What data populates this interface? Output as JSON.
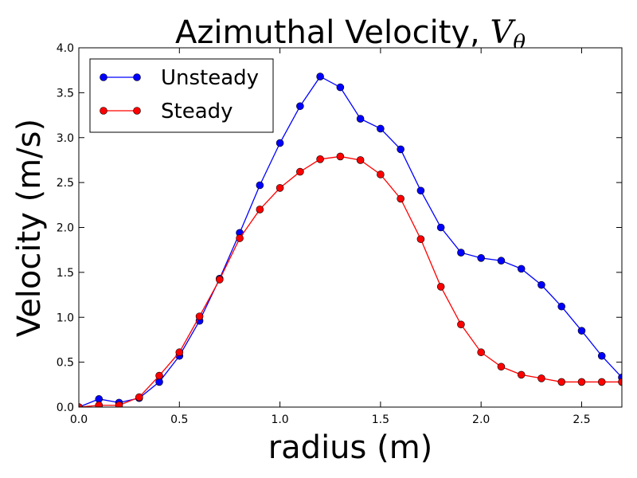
{
  "chart_data": {
    "type": "line",
    "title": "Azimuthal Velocity, ",
    "title_symbol": "V",
    "title_subscript": "θ",
    "xlabel": "radius (m)",
    "ylabel": "Velocity (m/s)",
    "xlim": [
      0.0,
      2.7
    ],
    "ylim": [
      0.0,
      4.0
    ],
    "xticks": [
      0.0,
      0.5,
      1.0,
      1.5,
      2.0,
      2.5
    ],
    "yticks": [
      0.0,
      0.5,
      1.0,
      1.5,
      2.0,
      2.5,
      3.0,
      3.5,
      4.0
    ],
    "grid": false,
    "legend_position": "top-left",
    "x": [
      0.0,
      0.1,
      0.2,
      0.3,
      0.4,
      0.5,
      0.6,
      0.7,
      0.8,
      0.9,
      1.0,
      1.1,
      1.2,
      1.3,
      1.4,
      1.5,
      1.6,
      1.7,
      1.8,
      1.9,
      2.0,
      2.1,
      2.2,
      2.3,
      2.4,
      2.5,
      2.6,
      2.7
    ],
    "series": [
      {
        "name": "Unsteady",
        "color": "#0000ff",
        "values": [
          0.0,
          0.09,
          0.05,
          0.1,
          0.28,
          0.57,
          0.96,
          1.43,
          1.94,
          2.47,
          2.94,
          3.35,
          3.68,
          3.56,
          3.21,
          3.1,
          2.87,
          2.41,
          2.0,
          1.72,
          1.66,
          1.63,
          1.54,
          1.36,
          1.12,
          0.85,
          0.57,
          0.33
        ]
      },
      {
        "name": "Steady",
        "color": "#ff0000",
        "values": [
          0.0,
          0.02,
          0.02,
          0.11,
          0.35,
          0.61,
          1.01,
          1.42,
          1.88,
          2.2,
          2.44,
          2.62,
          2.76,
          2.79,
          2.75,
          2.59,
          2.32,
          1.87,
          1.34,
          0.92,
          0.61,
          0.45,
          0.36,
          0.32,
          0.28,
          0.28,
          0.28,
          0.28
        ]
      }
    ]
  }
}
